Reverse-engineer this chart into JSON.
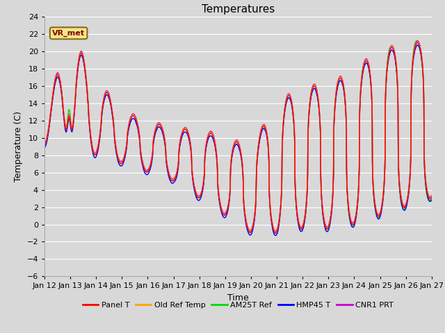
{
  "title": "Temperatures",
  "xlabel": "Time",
  "ylabel": "Temperature (C)",
  "ylim": [
    -6,
    24
  ],
  "yticks": [
    -6,
    -4,
    -2,
    0,
    2,
    4,
    6,
    8,
    10,
    12,
    14,
    16,
    18,
    20,
    22,
    24
  ],
  "xtick_labels": [
    "Jan 12",
    "Jan 13",
    "Jan 14",
    "Jan 15",
    "Jan 16",
    "Jan 17",
    "Jan 18",
    "Jan 19",
    "Jan 20",
    "Jan 21",
    "Jan 22",
    "Jan 23",
    "Jan 24",
    "Jan 25",
    "Jan 26",
    "Jan 27"
  ],
  "series": [
    {
      "label": "Panel T",
      "color": "#ff0000",
      "lw": 1.0
    },
    {
      "label": "Old Ref Temp",
      "color": "#ffa500",
      "lw": 1.0
    },
    {
      "label": "AM25T Ref",
      "color": "#00dd00",
      "lw": 1.0
    },
    {
      "label": "HMP45 T",
      "color": "#0000ff",
      "lw": 1.0
    },
    {
      "label": "CNR1 PRT",
      "color": "#cc00cc",
      "lw": 1.0
    }
  ],
  "annotation_text": "VR_met",
  "bg_color": "#d8d8d8",
  "plot_bg_color": "#d8d8d8",
  "grid_color": "#ffffff",
  "title_fontsize": 11,
  "axis_fontsize": 9,
  "tick_fontsize": 8
}
